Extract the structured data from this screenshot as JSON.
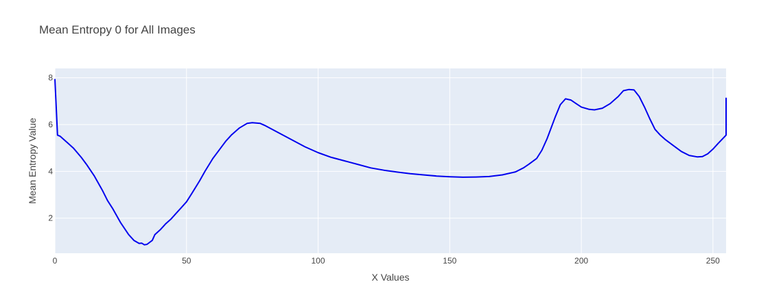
{
  "chart_data": {
    "type": "line",
    "title": "Mean Entropy 0 for All Images",
    "xlabel": "X Values",
    "ylabel": "Mean Entropy Value",
    "xlim": [
      0,
      255
    ],
    "ylim": [
      0.5,
      8.4
    ],
    "x_ticks": [
      0,
      50,
      100,
      150,
      200,
      250
    ],
    "y_ticks": [
      2,
      4,
      6,
      8
    ],
    "grid": true,
    "line_color": "#0000ee",
    "plot_background": "#e5ecf6",
    "series": [
      {
        "name": "",
        "x": [
          0,
          1,
          2,
          3,
          5,
          7,
          10,
          12,
          15,
          18,
          20,
          22,
          25,
          28,
          30,
          32,
          33,
          34,
          35,
          37,
          38,
          40,
          42,
          44,
          46,
          48,
          50,
          52,
          55,
          57,
          60,
          63,
          65,
          67,
          70,
          73,
          75,
          78,
          80,
          85,
          90,
          95,
          100,
          105,
          110,
          115,
          120,
          125,
          130,
          135,
          140,
          145,
          150,
          155,
          160,
          165,
          170,
          175,
          178,
          180,
          183,
          185,
          187,
          190,
          192,
          194,
          196,
          198,
          200,
          203,
          205,
          208,
          211,
          214,
          216,
          218,
          220,
          222,
          224,
          226,
          228,
          230,
          232,
          235,
          238,
          241,
          244,
          246,
          248,
          250,
          252,
          255,
          255.5
        ],
        "y": [
          7.95,
          5.55,
          5.5,
          5.4,
          5.2,
          5.0,
          4.6,
          4.3,
          3.8,
          3.2,
          2.75,
          2.4,
          1.8,
          1.3,
          1.05,
          0.92,
          0.93,
          0.86,
          0.88,
          1.05,
          1.3,
          1.5,
          1.75,
          1.95,
          2.2,
          2.45,
          2.7,
          3.05,
          3.6,
          4.0,
          4.55,
          5.0,
          5.3,
          5.55,
          5.85,
          6.05,
          6.08,
          6.05,
          5.95,
          5.65,
          5.35,
          5.05,
          4.8,
          4.6,
          4.45,
          4.3,
          4.15,
          4.05,
          3.97,
          3.9,
          3.85,
          3.8,
          3.77,
          3.75,
          3.76,
          3.78,
          3.85,
          3.98,
          4.15,
          4.3,
          4.55,
          4.9,
          5.4,
          6.3,
          6.85,
          7.1,
          7.05,
          6.9,
          6.75,
          6.65,
          6.63,
          6.7,
          6.9,
          7.2,
          7.45,
          7.5,
          7.48,
          7.2,
          6.75,
          6.25,
          5.8,
          5.55,
          5.35,
          5.1,
          4.85,
          4.68,
          4.62,
          4.63,
          4.75,
          4.95,
          5.2,
          5.55,
          7.15
        ]
      }
    ]
  }
}
